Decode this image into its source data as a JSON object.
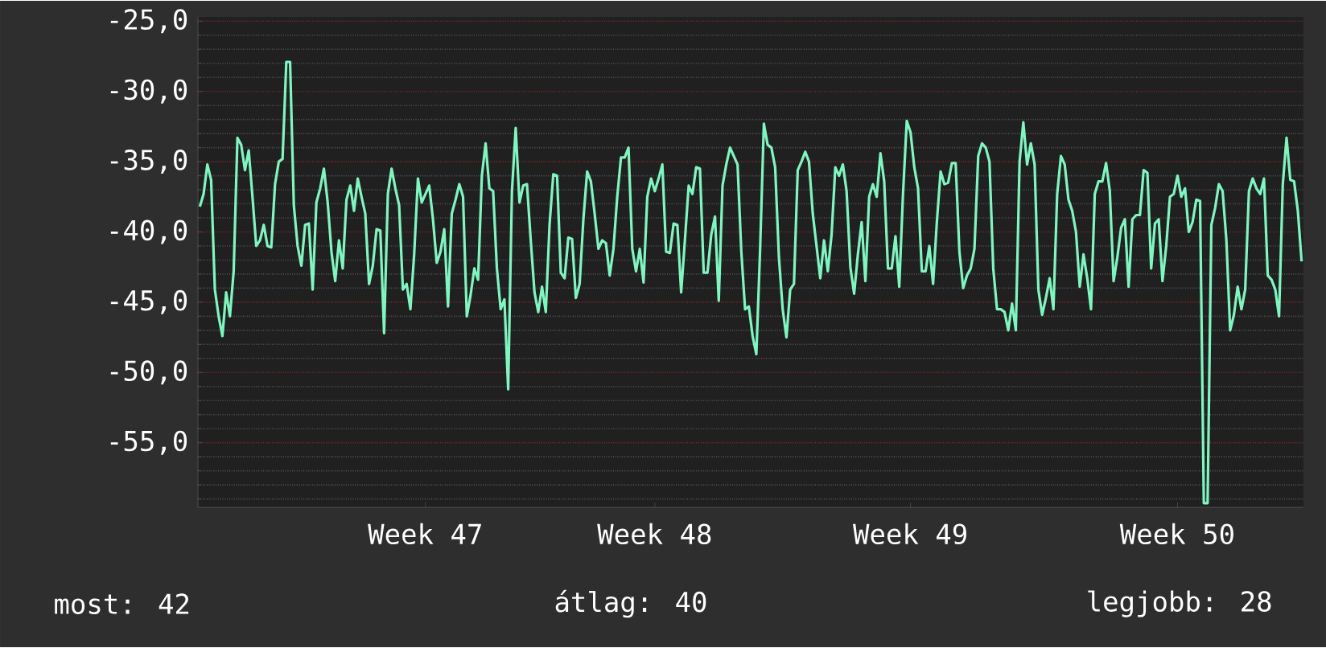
{
  "chart_data": {
    "type": "line",
    "annotations": [
      "most: 42",
      "átlag: 40",
      "legjobb: 28"
    ],
    "categories": [
      null,
      null,
      null,
      null,
      null,
      null,
      null,
      null,
      null,
      null,
      null,
      null,
      null,
      null,
      null,
      null,
      null,
      null,
      null,
      null,
      null,
      null,
      null,
      null,
      null,
      null,
      null,
      null,
      null,
      null,
      null,
      null,
      null,
      null,
      null,
      null,
      null,
      null,
      null,
      null,
      null,
      null,
      null,
      null,
      null,
      null,
      null,
      null,
      null,
      null,
      null,
      null,
      null,
      null,
      null,
      null,
      null,
      null,
      null,
      null,
      "Week 47",
      null,
      null,
      null,
      null,
      null,
      null,
      null,
      null,
      null,
      null,
      null,
      null,
      null,
      null,
      null,
      null,
      null,
      null,
      null,
      null,
      null,
      null,
      null,
      null,
      null,
      null,
      null,
      null,
      null,
      null,
      null,
      null,
      null,
      null,
      null,
      null,
      null,
      null,
      null,
      null,
      null,
      null,
      null,
      null,
      null,
      null,
      null,
      null,
      null,
      null,
      null,
      null,
      null,
      null,
      null,
      null,
      null,
      null,
      null,
      null,
      "Week 48",
      null,
      null,
      null,
      null,
      null,
      null,
      null,
      null,
      null,
      null,
      null,
      null,
      null,
      null,
      null,
      null,
      null,
      null,
      null,
      null,
      null,
      null,
      null,
      null,
      null,
      null,
      null,
      null,
      null,
      null,
      null,
      null,
      null,
      null,
      null,
      null,
      null,
      null,
      null,
      null,
      null,
      null,
      null,
      null,
      null,
      null,
      null,
      null,
      null,
      null,
      null,
      null,
      null,
      null,
      null,
      null,
      null,
      null,
      null,
      null,
      null,
      null,
      null,
      null,
      null,
      null,
      null,
      "Week 49",
      null,
      null,
      null,
      null,
      null,
      null,
      null,
      null,
      null,
      null,
      null,
      null,
      null,
      null,
      null,
      null,
      null,
      null,
      null,
      null,
      null,
      null,
      null,
      null,
      null,
      null,
      null,
      null,
      null,
      null,
      null,
      null,
      null,
      null,
      null,
      null,
      null,
      null,
      null,
      null,
      null,
      null,
      null,
      null,
      null,
      null,
      null,
      null,
      null,
      null,
      null,
      null,
      null,
      null,
      null,
      null,
      null,
      null,
      null,
      null,
      null,
      null,
      null,
      null,
      null,
      null,
      null,
      null,
      null,
      null,
      "Week 50",
      null,
      null,
      null,
      null,
      null,
      null,
      null,
      null,
      null,
      null,
      null,
      null,
      null,
      null,
      null,
      null,
      null,
      null,
      null,
      null,
      null,
      null,
      null,
      null,
      null,
      null,
      null,
      null,
      null,
      null,
      null,
      null,
      null
    ],
    "series": [
      {
        "color": "#7ff5c0",
        "values": [
          -38.2,
          -37.3,
          -35.2,
          -36.3,
          -44.1,
          -46.0,
          -47.4,
          -44.3,
          -46.0,
          -42.8,
          -33.3,
          -33.8,
          -35.6,
          -34.2,
          -37.5,
          -41.0,
          -40.6,
          -39.5,
          -41.0,
          -41.1,
          -36.6,
          -35.0,
          -34.8,
          -27.9,
          -27.9,
          -38.1,
          -41.0,
          -42.4,
          -39.5,
          -39.4,
          -44.1,
          -37.9,
          -36.9,
          -35.5,
          -37.9,
          -41.4,
          -43.5,
          -40.6,
          -42.6,
          -37.7,
          -36.7,
          -38.5,
          -36.2,
          -37.5,
          -38.7,
          -43.7,
          -42.4,
          -39.8,
          -39.9,
          -47.2,
          -37.3,
          -35.5,
          -36.9,
          -38.1,
          -44.1,
          -43.7,
          -45.5,
          -41.6,
          -36.2,
          -37.9,
          -37.3,
          -36.7,
          -39.1,
          -42.2,
          -41.4,
          -39.8,
          -45.3,
          -38.7,
          -37.7,
          -36.6,
          -37.5,
          -46.0,
          -44.5,
          -42.6,
          -43.4,
          -36.0,
          -33.7,
          -36.9,
          -37.1,
          -42.6,
          -45.5,
          -44.8,
          -51.2,
          -37.1,
          -32.6,
          -37.9,
          -36.7,
          -36.6,
          -40.6,
          -44.3,
          -45.7,
          -43.9,
          -45.7,
          -39.5,
          -35.9,
          -36.0,
          -42.9,
          -43.3,
          -40.4,
          -40.5,
          -44.7,
          -43.7,
          -39.1,
          -35.7,
          -36.4,
          -38.7,
          -41.2,
          -40.6,
          -40.8,
          -43.1,
          -41.2,
          -37.5,
          -34.7,
          -34.7,
          -34.0,
          -41.2,
          -42.8,
          -41.2,
          -43.6,
          -37.5,
          -36.2,
          -37.1,
          -36.2,
          -35.2,
          -41.4,
          -41.5,
          -39.4,
          -39.5,
          -44.3,
          -40.6,
          -36.7,
          -37.3,
          -35.4,
          -35.5,
          -42.9,
          -42.9,
          -40.2,
          -38.9,
          -44.9,
          -36.7,
          -35.2,
          -34.0,
          -34.6,
          -35.2,
          -41.4,
          -45.5,
          -45.3,
          -47.4,
          -48.7,
          -41.2,
          -32.3,
          -33.8,
          -34.0,
          -35.4,
          -41.8,
          -45.5,
          -47.5,
          -44.1,
          -43.7,
          -35.6,
          -35.0,
          -34.3,
          -35.0,
          -38.7,
          -41.0,
          -43.3,
          -40.6,
          -42.8,
          -40.2,
          -35.4,
          -36.0,
          -35.2,
          -37.1,
          -42.5,
          -44.4,
          -41.6,
          -39.3,
          -43.5,
          -37.5,
          -36.6,
          -37.5,
          -34.4,
          -36.4,
          -42.6,
          -42.6,
          -40.3,
          -43.9,
          -37.3,
          -32.1,
          -32.9,
          -35.4,
          -36.9,
          -42.8,
          -42.8,
          -41.0,
          -43.7,
          -39.3,
          -35.7,
          -36.6,
          -36.5,
          -35.1,
          -35.1,
          -41.4,
          -44.0,
          -43.1,
          -42.6,
          -41.2,
          -34.6,
          -33.7,
          -34.0,
          -35.0,
          -42.6,
          -45.5,
          -45.5,
          -45.7,
          -47.0,
          -45.1,
          -47.0,
          -35.0,
          -32.2,
          -35.2,
          -33.7,
          -35.2,
          -44.1,
          -45.9,
          -44.7,
          -43.3,
          -45.5,
          -37.3,
          -34.6,
          -35.2,
          -37.7,
          -38.5,
          -40.0,
          -43.9,
          -41.6,
          -43.3,
          -45.5,
          -37.3,
          -36.4,
          -36.4,
          -35.1,
          -37.1,
          -43.5,
          -41.8,
          -39.7,
          -39.1,
          -43.9,
          -39.1,
          -38.8,
          -38.8,
          -35.6,
          -35.8,
          -42.6,
          -39.4,
          -39.1,
          -43.5,
          -41.0,
          -37.5,
          -37.3,
          -36.0,
          -37.5,
          -36.9,
          -40.0,
          -39.3,
          -37.7,
          -37.8,
          -59.3,
          -59.3,
          -39.5,
          -38.3,
          -36.6,
          -37.1,
          -40.6,
          -47.0,
          -45.9,
          -43.9,
          -45.5,
          -44.1,
          -37.1,
          -36.2,
          -36.9,
          -37.3,
          -36.2,
          -43.1,
          -43.4,
          -44.1,
          -46.0,
          -36.6,
          -33.3,
          -36.3,
          -36.4,
          -38.5,
          -42.1
        ]
      }
    ],
    "ylim": [
      -59.6,
      -24.7
    ],
    "yticks": [
      {
        "value": -25,
        "label": "-25,0"
      },
      {
        "value": -30,
        "label": "-30,0"
      },
      {
        "value": -35,
        "label": "-35,0"
      },
      {
        "value": -40,
        "label": "-40,0"
      },
      {
        "value": -45,
        "label": "-45,0"
      },
      {
        "value": -50,
        "label": "-50,0"
      },
      {
        "value": -55,
        "label": "-55,0"
      },
      {
        "value": -26,
        "label": null
      },
      {
        "value": -27,
        "label": null
      },
      {
        "value": -28,
        "label": null
      },
      {
        "value": -29,
        "label": null
      },
      {
        "value": -31,
        "label": null
      },
      {
        "value": -32,
        "label": null
      },
      {
        "value": -33,
        "label": null
      },
      {
        "value": -34,
        "label": null
      },
      {
        "value": -36,
        "label": null
      },
      {
        "value": -37,
        "label": null
      },
      {
        "value": -38,
        "label": null
      },
      {
        "value": -39,
        "label": null
      },
      {
        "value": -41,
        "label": null
      },
      {
        "value": -42,
        "label": null
      },
      {
        "value": -43,
        "label": null
      },
      {
        "value": -44,
        "label": null
      },
      {
        "value": -46,
        "label": null
      },
      {
        "value": -47,
        "label": null
      },
      {
        "value": -48,
        "label": null
      },
      {
        "value": -49,
        "label": null
      },
      {
        "value": -51,
        "label": null
      },
      {
        "value": -52,
        "label": null
      },
      {
        "value": -53,
        "label": null
      },
      {
        "value": -54,
        "label": null
      },
      {
        "value": -56,
        "label": null
      },
      {
        "value": -57,
        "label": null
      },
      {
        "value": -58,
        "label": null
      },
      {
        "value": -59,
        "label": null
      }
    ],
    "grid": "y",
    "marker": "none",
    "line_style": "solid"
  }
}
